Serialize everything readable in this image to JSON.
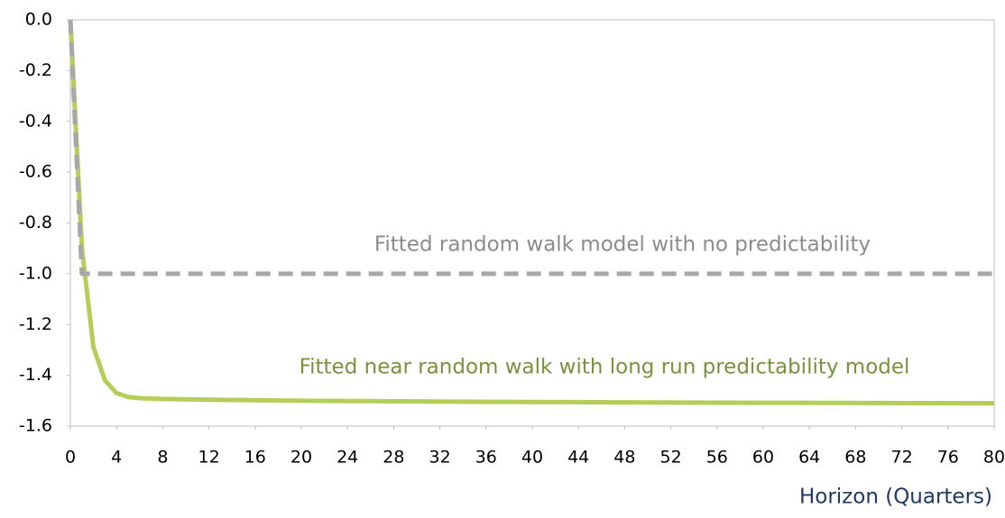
{
  "chart_data": {
    "type": "line",
    "x_label": "Horizon (Quarters)",
    "xlim": [
      0,
      80
    ],
    "xticks": [
      0,
      4,
      8,
      12,
      16,
      20,
      24,
      28,
      32,
      36,
      40,
      44,
      48,
      52,
      56,
      60,
      64,
      68,
      72,
      76,
      80
    ],
    "ylim": [
      -1.6,
      0
    ],
    "yticks": [
      {
        "value": 0,
        "label": "0.0"
      },
      {
        "value": -0.2,
        "label": "-0.2"
      },
      {
        "value": -0.4,
        "label": "-0.4"
      },
      {
        "value": -0.6,
        "label": "-0.6"
      },
      {
        "value": -0.8,
        "label": "-0.8"
      },
      {
        "value": -1,
        "label": "-1.0"
      },
      {
        "value": -1.2,
        "label": "-1.2"
      },
      {
        "value": -1.4,
        "label": "-1.4"
      },
      {
        "value": -1.6,
        "label": "-1.6"
      }
    ],
    "series": [
      {
        "color": "#a8a8a8",
        "dashed": true,
        "x": [
          0,
          1,
          80
        ],
        "values": [
          0,
          -1,
          -1
        ]
      },
      {
        "color": "#b3cf5a",
        "dashed": false,
        "x": [
          0,
          1,
          2,
          3,
          4,
          5,
          6,
          8,
          12,
          16,
          20,
          30,
          40,
          50,
          60,
          70,
          80
        ],
        "values": [
          0,
          -0.9,
          -1.29,
          -1.42,
          -1.47,
          -1.485,
          -1.49,
          -1.493,
          -1.496,
          -1.498,
          -1.5,
          -1.503,
          -1.505,
          -1.507,
          -1.508,
          -1.509,
          -1.51
        ]
      }
    ],
    "annotations": [
      {
        "text": "Fitted random walk model with no predictability",
        "color": "#8c8c8c"
      },
      {
        "text": "Fitted near random walk with long run predictability model",
        "color": "#77933c"
      }
    ]
  }
}
